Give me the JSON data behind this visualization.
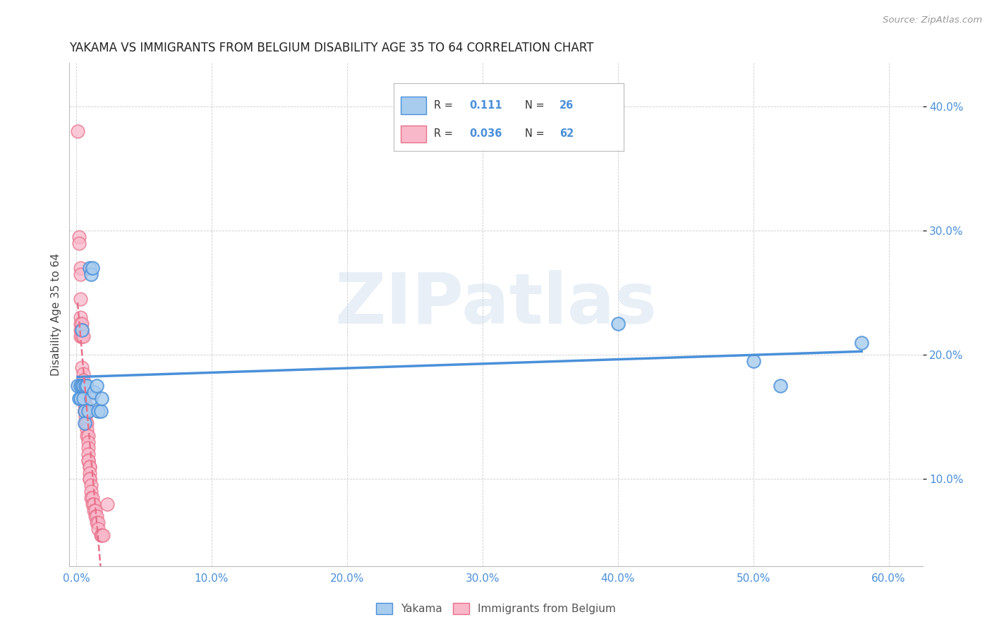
{
  "title": "YAKAMA VS IMMIGRANTS FROM BELGIUM DISABILITY AGE 35 TO 64 CORRELATION CHART",
  "source": "Source: ZipAtlas.com",
  "xlabel_ticks": [
    "0.0%",
    "10.0%",
    "20.0%",
    "30.0%",
    "40.0%",
    "50.0%",
    "60.0%"
  ],
  "xlabel_vals": [
    0.0,
    0.1,
    0.2,
    0.3,
    0.4,
    0.5,
    0.6
  ],
  "ylabel_ticks": [
    "10.0%",
    "20.0%",
    "30.0%",
    "40.0%"
  ],
  "ylabel_vals": [
    0.1,
    0.2,
    0.3,
    0.4
  ],
  "xlim": [
    -0.005,
    0.625
  ],
  "ylim": [
    0.03,
    0.435
  ],
  "watermark": "ZIPatlas",
  "legend_R_yakama": "0.111",
  "legend_N_yakama": "26",
  "legend_R_belgium": "0.036",
  "legend_N_belgium": "62",
  "yakama_color": "#A8CCEE",
  "belgium_color": "#F9B8CA",
  "line_yakama_color": "#4A90D9",
  "line_belgium_color": "#E8708A",
  "yakama_scatter": [
    [
      0.001,
      0.175
    ],
    [
      0.002,
      0.165
    ],
    [
      0.003,
      0.175
    ],
    [
      0.003,
      0.165
    ],
    [
      0.004,
      0.175
    ],
    [
      0.004,
      0.22
    ],
    [
      0.005,
      0.165
    ],
    [
      0.005,
      0.175
    ],
    [
      0.006,
      0.155
    ],
    [
      0.006,
      0.145
    ],
    [
      0.007,
      0.175
    ],
    [
      0.008,
      0.175
    ],
    [
      0.009,
      0.155
    ],
    [
      0.01,
      0.27
    ],
    [
      0.011,
      0.265
    ],
    [
      0.011,
      0.165
    ],
    [
      0.012,
      0.27
    ],
    [
      0.013,
      0.17
    ],
    [
      0.015,
      0.175
    ],
    [
      0.016,
      0.155
    ],
    [
      0.018,
      0.155
    ],
    [
      0.019,
      0.165
    ],
    [
      0.4,
      0.225
    ],
    [
      0.5,
      0.195
    ],
    [
      0.52,
      0.175
    ],
    [
      0.58,
      0.21
    ]
  ],
  "belgium_scatter": [
    [
      0.001,
      0.38
    ],
    [
      0.002,
      0.295
    ],
    [
      0.002,
      0.29
    ],
    [
      0.003,
      0.27
    ],
    [
      0.003,
      0.265
    ],
    [
      0.003,
      0.245
    ],
    [
      0.003,
      0.23
    ],
    [
      0.003,
      0.225
    ],
    [
      0.003,
      0.22
    ],
    [
      0.003,
      0.215
    ],
    [
      0.004,
      0.225
    ],
    [
      0.004,
      0.22
    ],
    [
      0.004,
      0.215
    ],
    [
      0.004,
      0.19
    ],
    [
      0.005,
      0.215
    ],
    [
      0.005,
      0.185
    ],
    [
      0.005,
      0.18
    ],
    [
      0.005,
      0.175
    ],
    [
      0.005,
      0.165
    ],
    [
      0.005,
      0.165
    ],
    [
      0.006,
      0.175
    ],
    [
      0.006,
      0.165
    ],
    [
      0.006,
      0.165
    ],
    [
      0.006,
      0.16
    ],
    [
      0.006,
      0.155
    ],
    [
      0.006,
      0.155
    ],
    [
      0.007,
      0.16
    ],
    [
      0.007,
      0.155
    ],
    [
      0.007,
      0.15
    ],
    [
      0.007,
      0.145
    ],
    [
      0.007,
      0.145
    ],
    [
      0.008,
      0.145
    ],
    [
      0.008,
      0.14
    ],
    [
      0.008,
      0.135
    ],
    [
      0.009,
      0.135
    ],
    [
      0.009,
      0.13
    ],
    [
      0.009,
      0.125
    ],
    [
      0.009,
      0.12
    ],
    [
      0.009,
      0.115
    ],
    [
      0.009,
      0.115
    ],
    [
      0.01,
      0.11
    ],
    [
      0.01,
      0.11
    ],
    [
      0.01,
      0.105
    ],
    [
      0.01,
      0.1
    ],
    [
      0.01,
      0.1
    ],
    [
      0.011,
      0.095
    ],
    [
      0.011,
      0.09
    ],
    [
      0.011,
      0.085
    ],
    [
      0.012,
      0.085
    ],
    [
      0.012,
      0.08
    ],
    [
      0.013,
      0.08
    ],
    [
      0.013,
      0.075
    ],
    [
      0.014,
      0.075
    ],
    [
      0.014,
      0.07
    ],
    [
      0.015,
      0.07
    ],
    [
      0.015,
      0.065
    ],
    [
      0.016,
      0.065
    ],
    [
      0.016,
      0.06
    ],
    [
      0.018,
      0.055
    ],
    [
      0.019,
      0.055
    ],
    [
      0.02,
      0.055
    ],
    [
      0.023,
      0.08
    ]
  ]
}
